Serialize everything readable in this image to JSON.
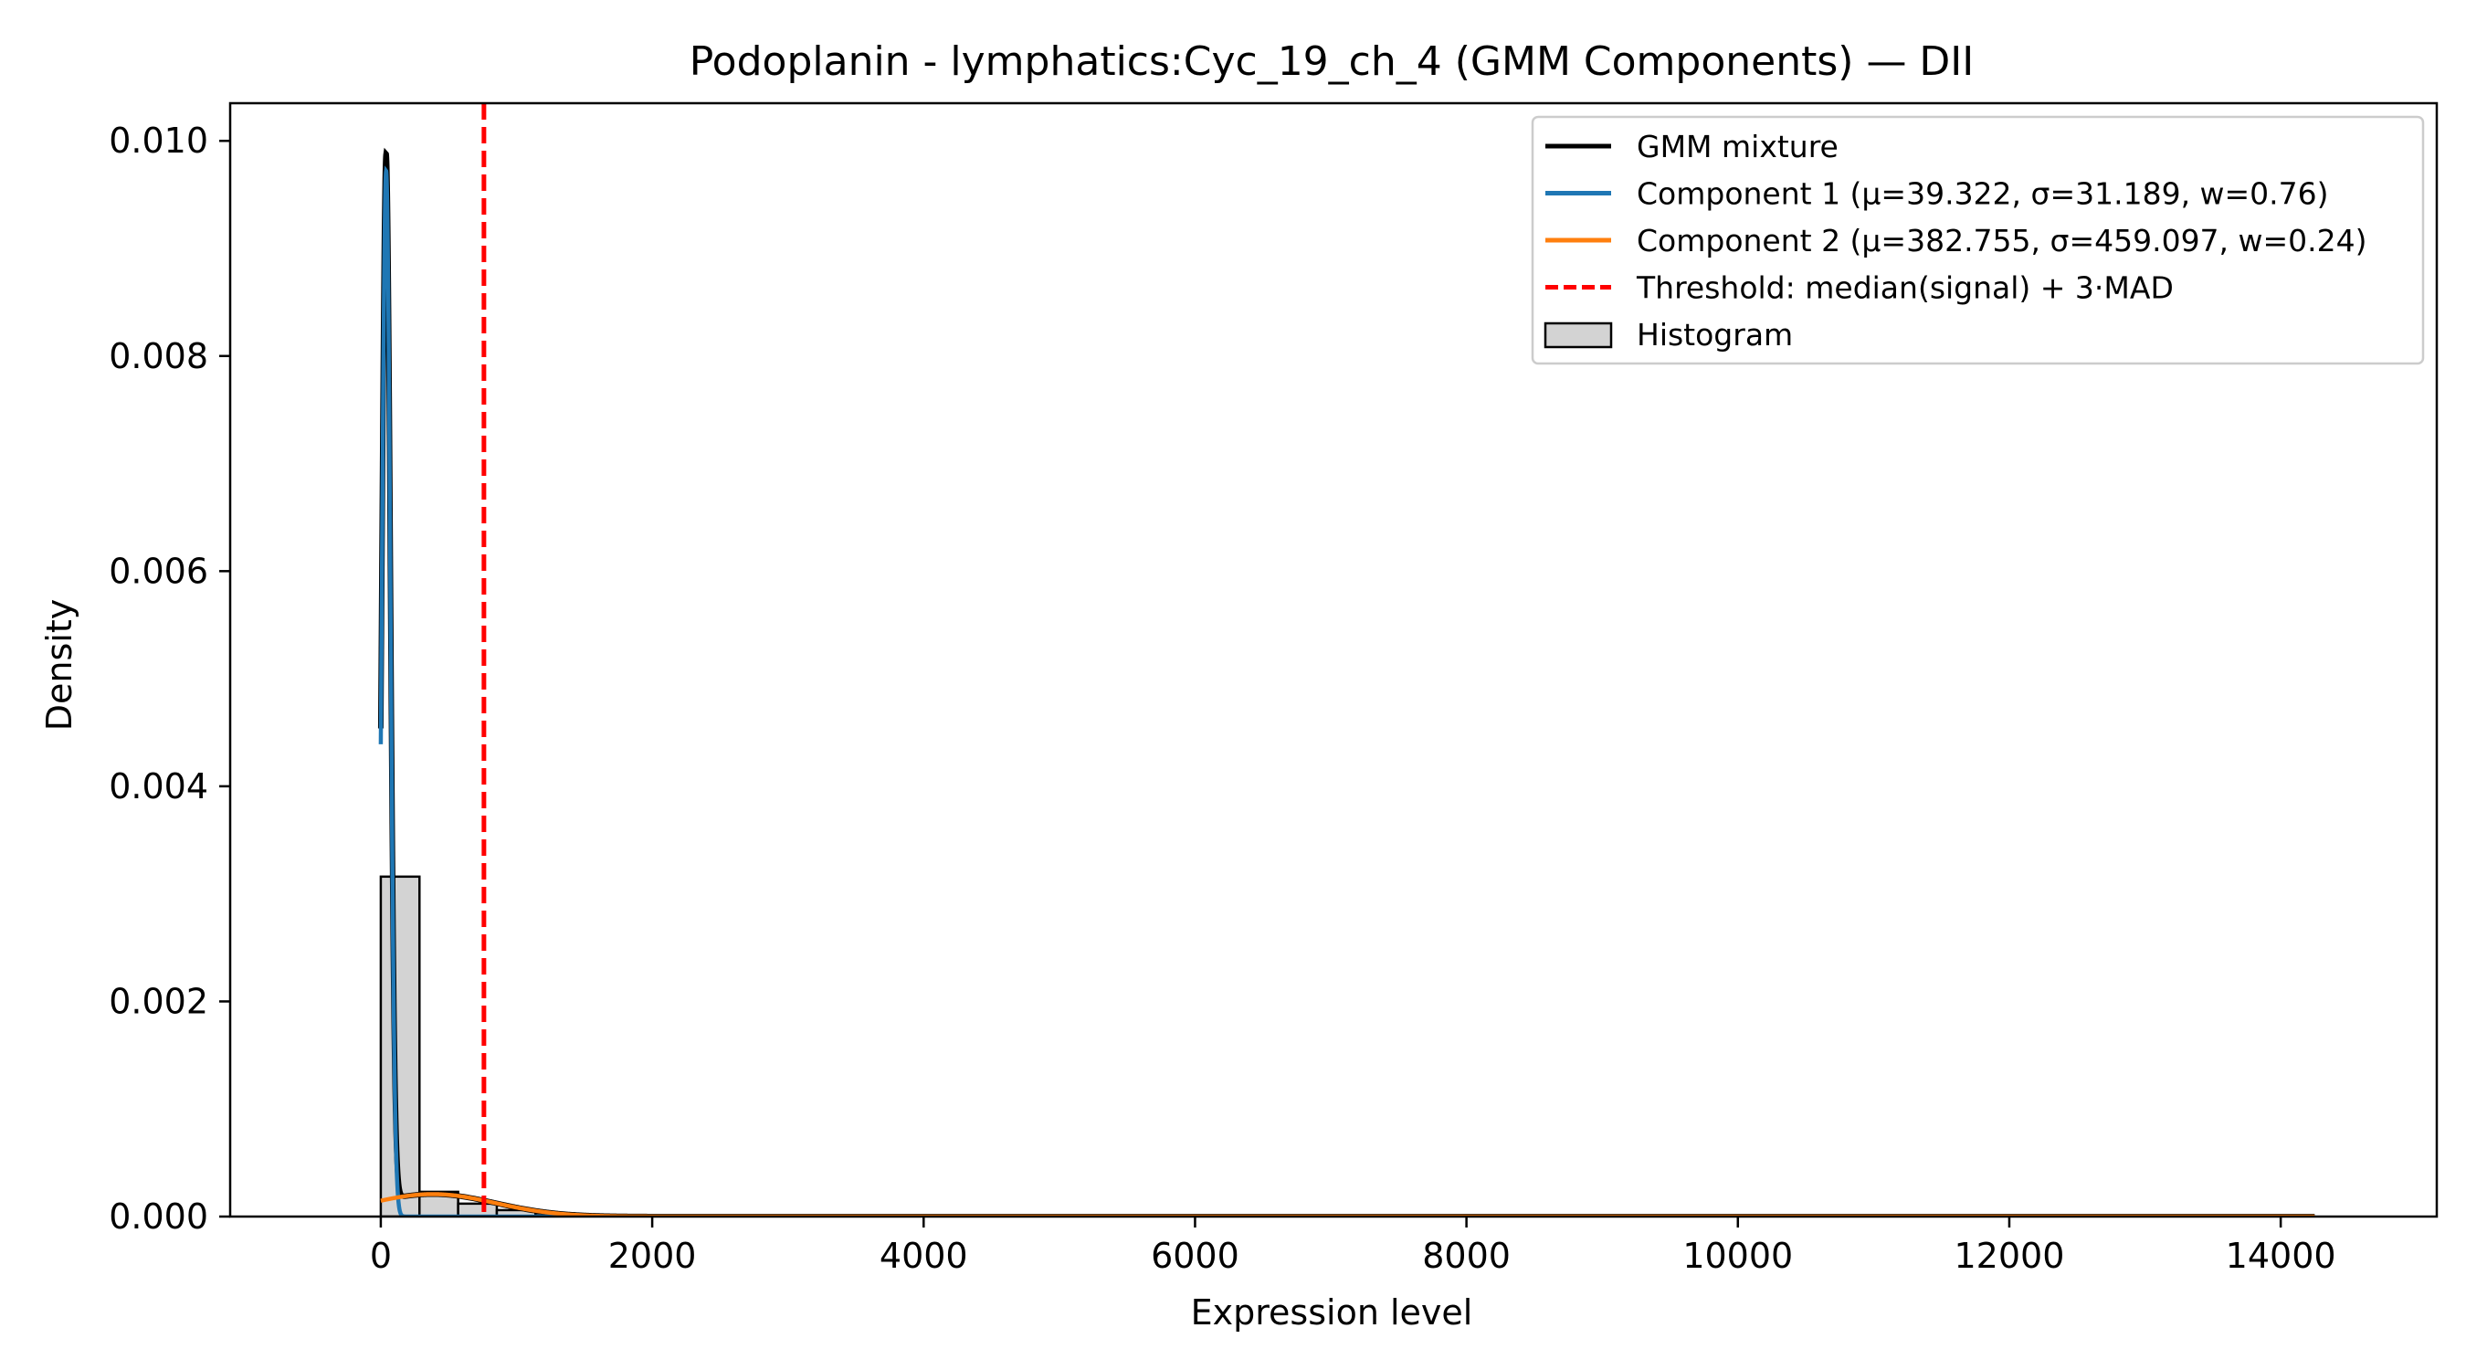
{
  "chart_data": {
    "type": "histogram",
    "title": "Podoplanin - lymphatics:Cyc_19_ch_4 (GMM Components) — DII",
    "xlabel": "Expression level",
    "ylabel": "Density",
    "xlim": [
      -1110,
      15150
    ],
    "ylim": [
      0,
      0.01035
    ],
    "xticks": [
      0,
      2000,
      4000,
      6000,
      8000,
      10000,
      12000,
      14000
    ],
    "yticks": [
      0.0,
      0.002,
      0.004,
      0.006,
      0.008,
      0.01
    ],
    "xtick_labels": [
      "0",
      "2000",
      "4000",
      "6000",
      "8000",
      "10000",
      "12000",
      "14000"
    ],
    "ytick_labels": [
      "0.000",
      "0.002",
      "0.004",
      "0.006",
      "0.008",
      "0.010"
    ],
    "grid": false,
    "legend_position": "top-right",
    "histogram": {
      "bin_edges": [
        0,
        285,
        570,
        855,
        1140,
        1425,
        1710
      ],
      "densities": [
        0.00316,
        0.00023,
        0.00012,
        6e-05,
        3e-05,
        1e-05
      ]
    },
    "gmm": {
      "x_range": [
        0,
        14250
      ],
      "components": [
        {
          "mu": 39.322,
          "sigma": 31.189,
          "w": 0.76
        },
        {
          "mu": 382.755,
          "sigma": 459.097,
          "w": 0.24
        }
      ]
    },
    "threshold": {
      "x": 760
    },
    "series": [
      {
        "name": "GMM mixture",
        "color": "#000000",
        "style": "solid"
      },
      {
        "name": "Component 1 (μ=39.322, σ=31.189, w=0.76)",
        "color": "#1f77b4",
        "style": "solid"
      },
      {
        "name": "Component 2 (μ=382.755, σ=459.097, w=0.24)",
        "color": "#ff7f0e",
        "style": "solid"
      },
      {
        "name": "Threshold: median(signal) + 3·MAD",
        "color": "#ff0000",
        "style": "dashed"
      },
      {
        "name": "Histogram",
        "color": "#d3d3d3",
        "style": "patch"
      }
    ]
  }
}
